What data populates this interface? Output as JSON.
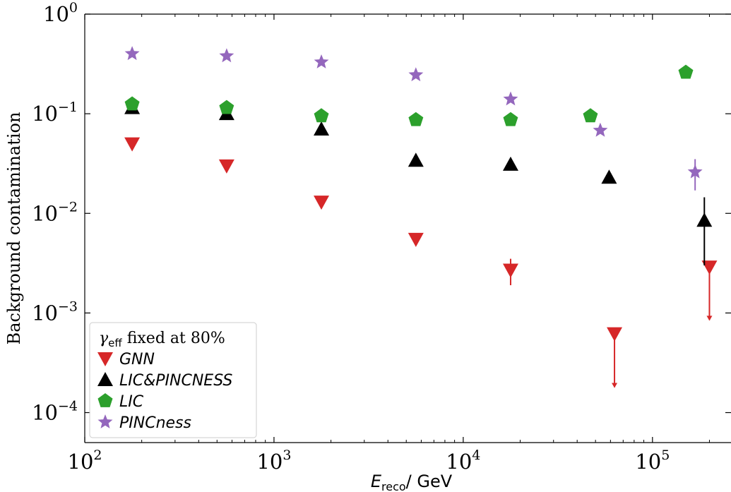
{
  "chart_data": {
    "type": "scatter",
    "xlabel": "E_reco / GeV",
    "xlabel_parts": {
      "symbol": "E",
      "sub": "reco",
      "unit": "/ GeV"
    },
    "ylabel": "Background contamination",
    "xscale": "log",
    "yscale": "log",
    "xlim": [
      100,
      260000
    ],
    "ylim": [
      5e-05,
      1
    ],
    "x_ticks": [
      {
        "value": 100,
        "base": "10",
        "exp": "2"
      },
      {
        "value": 1000,
        "base": "10",
        "exp": "3"
      },
      {
        "value": 10000,
        "base": "10",
        "exp": "4"
      },
      {
        "value": 100000,
        "base": "10",
        "exp": "5"
      }
    ],
    "y_ticks": [
      {
        "value": 1,
        "base": "10",
        "exp": "0"
      },
      {
        "value": 0.1,
        "base": "10",
        "exp": "−1"
      },
      {
        "value": 0.01,
        "base": "10",
        "exp": "−2"
      },
      {
        "value": 0.001,
        "base": "10",
        "exp": "−3"
      },
      {
        "value": 0.0001,
        "base": "10",
        "exp": "−4"
      }
    ],
    "legend": {
      "placement": "lower-left",
      "title_parts": {
        "symbol": "γ",
        "sub": "eff",
        "rest": " fixed at 80%"
      }
    },
    "series": [
      {
        "name": "GNN",
        "marker": "triangle-down",
        "color": "#d62728",
        "points": [
          {
            "x": 178,
            "y": 0.05
          },
          {
            "x": 562,
            "y": 0.03
          },
          {
            "x": 1780,
            "y": 0.013
          },
          {
            "x": 5620,
            "y": 0.0055
          },
          {
            "x": 17800,
            "y": 0.0027,
            "err": [
              0.0019,
              0.0035
            ]
          },
          {
            "x": 63000,
            "y": 0.00062,
            "upper_limit": true,
            "limit_to": 0.00018
          },
          {
            "x": 200000,
            "y": 0.0029,
            "upper_limit": true,
            "limit_to": 0.00085
          }
        ]
      },
      {
        "name": "LIC&PINCNESS",
        "marker": "triangle-up",
        "color": "#000000",
        "points": [
          {
            "x": 178,
            "y": 0.115
          },
          {
            "x": 562,
            "y": 0.1
          },
          {
            "x": 1780,
            "y": 0.07
          },
          {
            "x": 5620,
            "y": 0.034
          },
          {
            "x": 17800,
            "y": 0.031
          },
          {
            "x": 59000,
            "y": 0.023
          },
          {
            "x": 188000,
            "y": 0.0085,
            "err": [
              0.003,
              0.0145
            ]
          }
        ]
      },
      {
        "name": "LIC",
        "marker": "pentagon",
        "color": "#2ca02c",
        "points": [
          {
            "x": 178,
            "y": 0.125
          },
          {
            "x": 562,
            "y": 0.115
          },
          {
            "x": 1780,
            "y": 0.095
          },
          {
            "x": 5620,
            "y": 0.087
          },
          {
            "x": 17800,
            "y": 0.087
          },
          {
            "x": 47000,
            "y": 0.095
          },
          {
            "x": 150000,
            "y": 0.26
          }
        ]
      },
      {
        "name": "PINCness",
        "marker": "star",
        "color": "#9467bd",
        "points": [
          {
            "x": 178,
            "y": 0.4
          },
          {
            "x": 562,
            "y": 0.38
          },
          {
            "x": 1780,
            "y": 0.33
          },
          {
            "x": 5620,
            "y": 0.245
          },
          {
            "x": 17800,
            "y": 0.14
          },
          {
            "x": 53000,
            "y": 0.068
          },
          {
            "x": 168000,
            "y": 0.026,
            "err": [
              0.017,
              0.035
            ]
          }
        ]
      }
    ]
  }
}
